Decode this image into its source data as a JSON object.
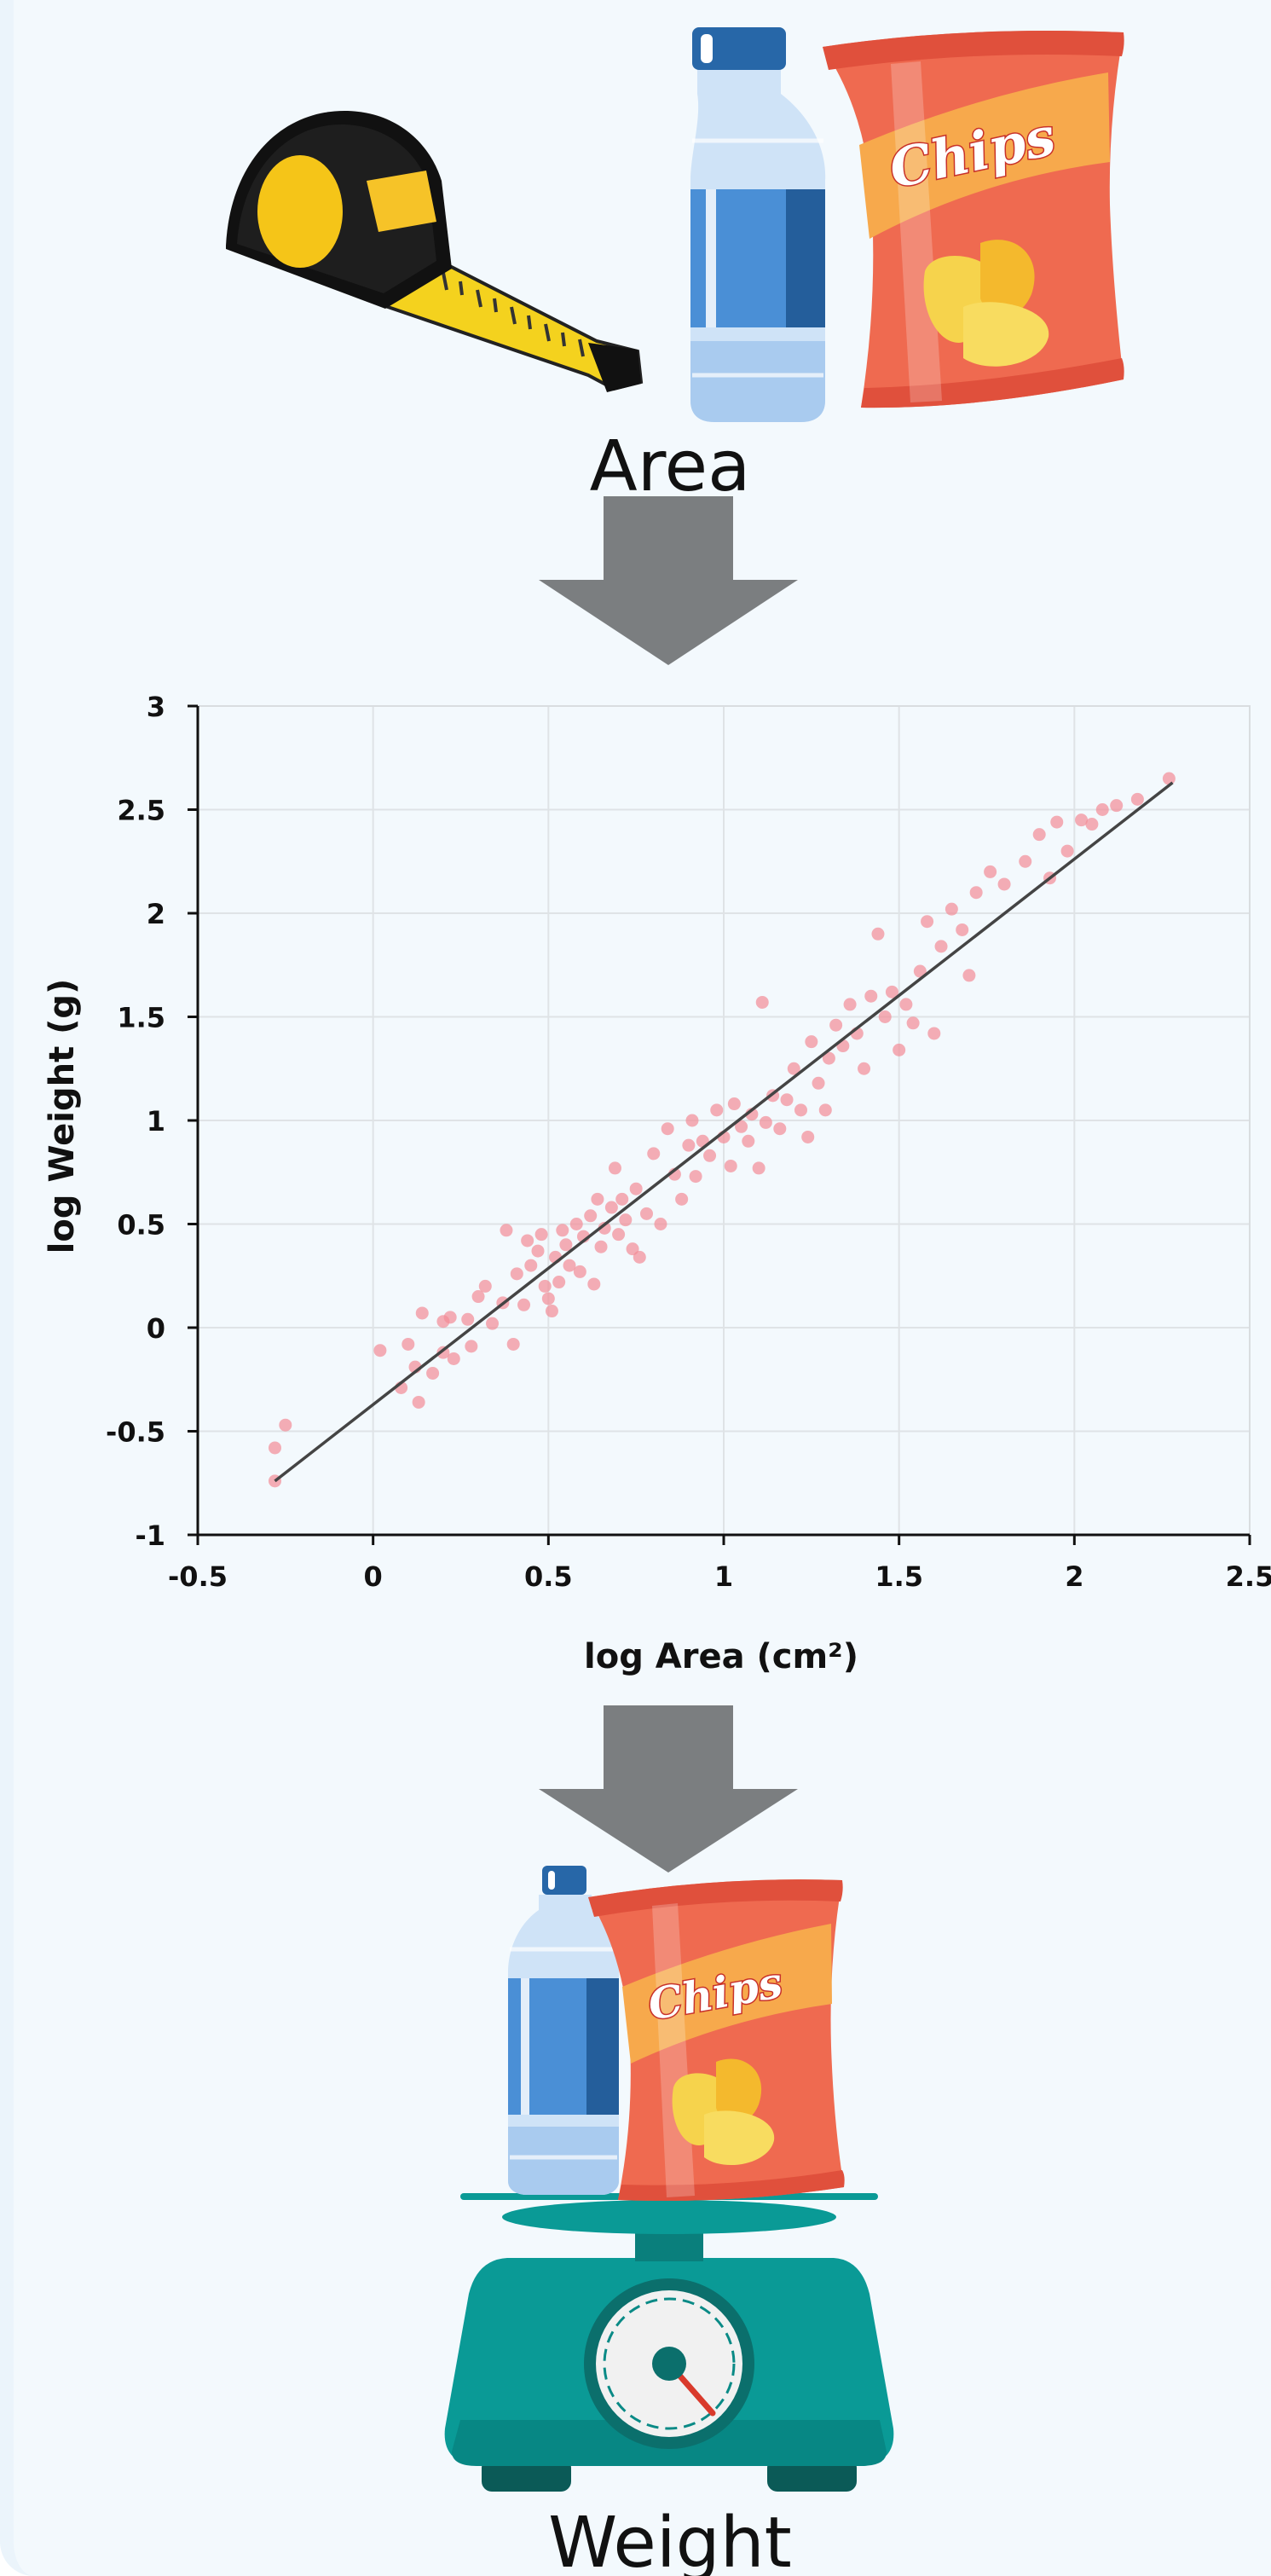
{
  "top_label": "Area",
  "bottom_label": "Weight",
  "chips_label": "Chips",
  "icons": {
    "tape": "tape-measure-icon",
    "bottle": "water-bottle-icon",
    "chips": "chips-bag-icon",
    "arrow": "down-arrow-icon",
    "scale": "weighing-scale-icon"
  },
  "colors": {
    "arrow": "#7b7e80",
    "points": "#f28b95",
    "fit_line": "#444444",
    "scale": "#0a9a96",
    "chips_bag": "#ef6a50",
    "bottle": "#4a8fd6"
  },
  "chart_data": {
    "type": "scatter",
    "xlabel": "log Area (cm²)",
    "ylabel": "log Weight (g)",
    "xlim": [
      -0.5,
      2.5
    ],
    "ylim": [
      -1,
      3
    ],
    "x_ticks": [
      "-0.5",
      "0",
      "0.5",
      "1",
      "1.5",
      "2",
      "2.5"
    ],
    "y_ticks": [
      "-1",
      "-0.5",
      "0",
      "0.5",
      "1",
      "1.5",
      "2",
      "2.5",
      "3"
    ],
    "grid": true,
    "fit_line": {
      "x": [
        -0.28,
        2.28
      ],
      "y": [
        -0.74,
        2.63
      ]
    },
    "points": [
      [
        -0.28,
        -0.74
      ],
      [
        -0.28,
        -0.58
      ],
      [
        -0.25,
        -0.47
      ],
      [
        0.02,
        -0.11
      ],
      [
        0.08,
        -0.29
      ],
      [
        0.1,
        -0.08
      ],
      [
        0.12,
        -0.19
      ],
      [
        0.13,
        -0.36
      ],
      [
        0.14,
        0.07
      ],
      [
        0.17,
        -0.22
      ],
      [
        0.2,
        -0.12
      ],
      [
        0.2,
        0.03
      ],
      [
        0.22,
        0.05
      ],
      [
        0.23,
        -0.15
      ],
      [
        0.27,
        0.04
      ],
      [
        0.28,
        -0.09
      ],
      [
        0.3,
        0.15
      ],
      [
        0.32,
        0.2
      ],
      [
        0.34,
        0.02
      ],
      [
        0.37,
        0.12
      ],
      [
        0.38,
        0.47
      ],
      [
        0.4,
        -0.08
      ],
      [
        0.41,
        0.26
      ],
      [
        0.43,
        0.11
      ],
      [
        0.44,
        0.42
      ],
      [
        0.45,
        0.3
      ],
      [
        0.47,
        0.37
      ],
      [
        0.48,
        0.45
      ],
      [
        0.49,
        0.2
      ],
      [
        0.5,
        0.14
      ],
      [
        0.51,
        0.08
      ],
      [
        0.52,
        0.34
      ],
      [
        0.53,
        0.22
      ],
      [
        0.54,
        0.47
      ],
      [
        0.55,
        0.4
      ],
      [
        0.56,
        0.3
      ],
      [
        0.58,
        0.5
      ],
      [
        0.59,
        0.27
      ],
      [
        0.6,
        0.44
      ],
      [
        0.62,
        0.54
      ],
      [
        0.63,
        0.21
      ],
      [
        0.64,
        0.62
      ],
      [
        0.65,
        0.39
      ],
      [
        0.66,
        0.48
      ],
      [
        0.68,
        0.58
      ],
      [
        0.69,
        0.77
      ],
      [
        0.7,
        0.45
      ],
      [
        0.71,
        0.62
      ],
      [
        0.72,
        0.52
      ],
      [
        0.74,
        0.38
      ],
      [
        0.75,
        0.67
      ],
      [
        0.76,
        0.34
      ],
      [
        0.78,
        0.55
      ],
      [
        0.8,
        0.84
      ],
      [
        0.82,
        0.5
      ],
      [
        0.84,
        0.96
      ],
      [
        0.86,
        0.74
      ],
      [
        0.88,
        0.62
      ],
      [
        0.9,
        0.88
      ],
      [
        0.91,
        1.0
      ],
      [
        0.92,
        0.73
      ],
      [
        0.94,
        0.9
      ],
      [
        0.96,
        0.83
      ],
      [
        0.98,
        1.05
      ],
      [
        1.0,
        0.92
      ],
      [
        1.02,
        0.78
      ],
      [
        1.03,
        1.08
      ],
      [
        1.05,
        0.97
      ],
      [
        1.07,
        0.9
      ],
      [
        1.08,
        1.03
      ],
      [
        1.1,
        0.77
      ],
      [
        1.11,
        1.57
      ],
      [
        1.12,
        0.99
      ],
      [
        1.14,
        1.12
      ],
      [
        1.16,
        0.96
      ],
      [
        1.18,
        1.1
      ],
      [
        1.2,
        1.25
      ],
      [
        1.22,
        1.05
      ],
      [
        1.24,
        0.92
      ],
      [
        1.25,
        1.38
      ],
      [
        1.27,
        1.18
      ],
      [
        1.29,
        1.05
      ],
      [
        1.3,
        1.3
      ],
      [
        1.32,
        1.46
      ],
      [
        1.34,
        1.36
      ],
      [
        1.36,
        1.56
      ],
      [
        1.38,
        1.42
      ],
      [
        1.4,
        1.25
      ],
      [
        1.42,
        1.6
      ],
      [
        1.44,
        1.9
      ],
      [
        1.46,
        1.5
      ],
      [
        1.48,
        1.62
      ],
      [
        1.5,
        1.34
      ],
      [
        1.52,
        1.56
      ],
      [
        1.54,
        1.47
      ],
      [
        1.56,
        1.72
      ],
      [
        1.58,
        1.96
      ],
      [
        1.6,
        1.42
      ],
      [
        1.62,
        1.84
      ],
      [
        1.65,
        2.02
      ],
      [
        1.68,
        1.92
      ],
      [
        1.7,
        1.7
      ],
      [
        1.72,
        2.1
      ],
      [
        1.76,
        2.2
      ],
      [
        1.8,
        2.14
      ],
      [
        1.86,
        2.25
      ],
      [
        1.9,
        2.38
      ],
      [
        1.93,
        2.17
      ],
      [
        1.95,
        2.44
      ],
      [
        1.98,
        2.3
      ],
      [
        2.02,
        2.45
      ],
      [
        2.05,
        2.43
      ],
      [
        2.08,
        2.5
      ],
      [
        2.12,
        2.52
      ],
      [
        2.18,
        2.55
      ],
      [
        2.27,
        2.65
      ]
    ]
  }
}
